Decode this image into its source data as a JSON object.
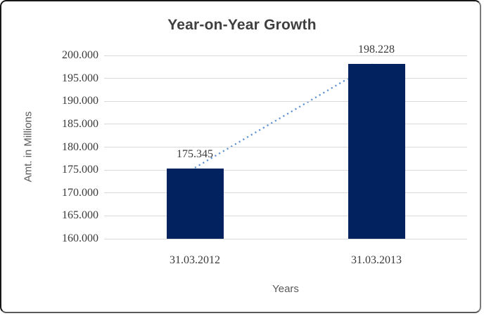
{
  "chart_data": {
    "type": "bar",
    "title": "Year-on-Year Growth",
    "xlabel": "Years",
    "ylabel": "Amt. in Millions",
    "categories": [
      "31.03.2012",
      "31.03.2013"
    ],
    "values": [
      175.345,
      198.228
    ],
    "data_labels": [
      "175.345",
      "198.228"
    ],
    "ylim": [
      160,
      200
    ],
    "yticks": {
      "values": [
        160,
        165,
        170,
        175,
        180,
        185,
        190,
        195,
        200
      ],
      "labels": [
        "160.000",
        "165.000",
        "170.000",
        "175.000",
        "180.000",
        "185.000",
        "190.000",
        "195.000",
        "200.000"
      ]
    },
    "grid": true,
    "legend": "none",
    "trendline": {
      "style": "dotted",
      "from_point": 0,
      "to_point": 1
    },
    "colors": {
      "bar": "#02215f",
      "trendline": "#5b8fd1",
      "gridline": "#d9d9d9",
      "title_text": "#3f3f3f",
      "tick_text": "#3a3a3a",
      "data_label_text": "#3a3a3a",
      "axis_title_text": "#595959",
      "background": "#ffffff"
    }
  }
}
